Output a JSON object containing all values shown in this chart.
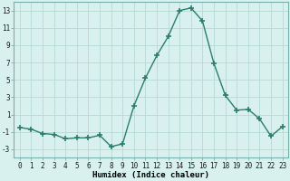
{
  "x": [
    0,
    1,
    2,
    3,
    4,
    5,
    6,
    7,
    8,
    9,
    10,
    11,
    12,
    13,
    14,
    15,
    16,
    17,
    18,
    19,
    20,
    21,
    22,
    23
  ],
  "y": [
    -0.5,
    -0.7,
    -1.2,
    -1.3,
    -1.8,
    -1.7,
    -1.7,
    -1.4,
    -2.7,
    -2.4,
    2.0,
    5.2,
    7.8,
    10.0,
    13.0,
    13.3,
    11.8,
    6.9,
    3.2,
    1.5,
    1.6,
    0.5,
    -1.5,
    -0.4
  ],
  "line_color": "#2d7d6e",
  "marker": "+",
  "marker_size": 4,
  "linewidth": 1.0,
  "bg_color": "#d8f0ee",
  "grid_color": "#b8d8d4",
  "xlabel": "Humidex (Indice chaleur)",
  "xlim": [
    -0.5,
    23.5
  ],
  "ylim": [
    -4,
    14
  ],
  "yticks": [
    -3,
    -1,
    1,
    3,
    5,
    7,
    9,
    11,
    13
  ],
  "xticks": [
    0,
    1,
    2,
    3,
    4,
    5,
    6,
    7,
    8,
    9,
    10,
    11,
    12,
    13,
    14,
    15,
    16,
    17,
    18,
    19,
    20,
    21,
    22,
    23
  ],
  "tick_fontsize": 5.5,
  "xlabel_fontsize": 6.5,
  "spine_color": "#7ab0aa"
}
